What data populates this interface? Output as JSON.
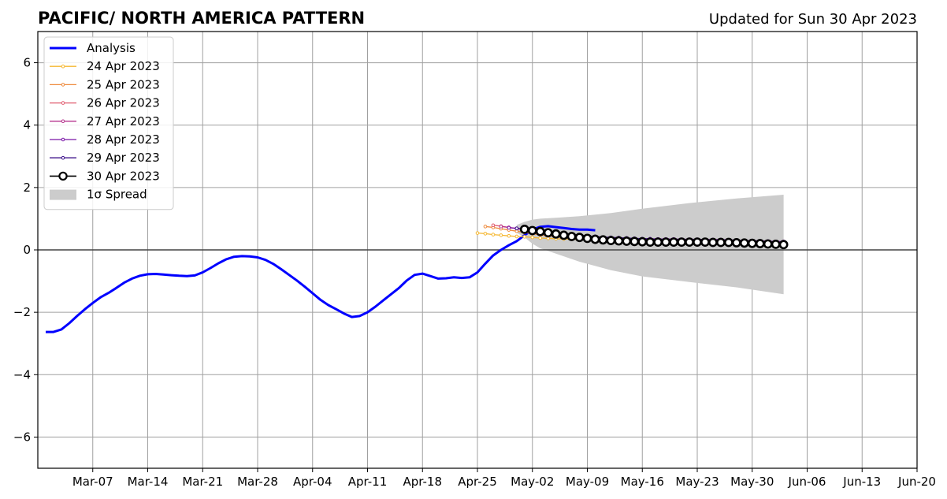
{
  "title": "PACIFIC/ NORTH AMERICA PATTERN",
  "subtitle": "Updated for Sun 30 Apr 2023",
  "chart_data": {
    "type": "line",
    "title": "PACIFIC/ NORTH AMERICA PATTERN",
    "subtitle": "Updated for Sun 30 Apr 2023",
    "xlabel": "",
    "ylabel": "",
    "x_axis": "date",
    "xlim": [
      "2023-02-28",
      "2023-06-20"
    ],
    "ylim": [
      -7,
      7
    ],
    "x_ticks": [
      "Mar-07",
      "Mar-14",
      "Mar-21",
      "Mar-28",
      "Apr-04",
      "Apr-11",
      "Apr-18",
      "Apr-25",
      "May-02",
      "May-09",
      "May-16",
      "May-23",
      "May-30",
      "Jun-06",
      "Jun-13",
      "Jun-20"
    ],
    "x_tick_dates": [
      "2023-03-07",
      "2023-03-14",
      "2023-03-21",
      "2023-03-28",
      "2023-04-04",
      "2023-04-11",
      "2023-04-18",
      "2023-04-25",
      "2023-05-02",
      "2023-05-09",
      "2023-05-16",
      "2023-05-23",
      "2023-05-30",
      "2023-06-06",
      "2023-06-13",
      "2023-06-20"
    ],
    "y_ticks": [
      -6,
      -4,
      -2,
      0,
      2,
      4,
      6
    ],
    "y_tick_labels": [
      "−6",
      "−4",
      "−2",
      "0",
      "2",
      "4",
      "6"
    ],
    "grid": true,
    "zero_line": true,
    "legend_position": "top-left",
    "series": [
      {
        "name": "Analysis",
        "kind": "line",
        "color": "#0000ff",
        "start_date": "2023-03-01",
        "values": [
          -2.63,
          -2.63,
          -2.55,
          -2.35,
          -2.12,
          -1.9,
          -1.7,
          -1.52,
          -1.38,
          -1.22,
          -1.05,
          -0.92,
          -0.83,
          -0.78,
          -0.77,
          -0.79,
          -0.81,
          -0.83,
          -0.84,
          -0.82,
          -0.72,
          -0.58,
          -0.43,
          -0.3,
          -0.22,
          -0.2,
          -0.21,
          -0.24,
          -0.32,
          -0.45,
          -0.62,
          -0.8,
          -0.98,
          -1.18,
          -1.39,
          -1.6,
          -1.77,
          -1.9,
          -2.04,
          -2.15,
          -2.12,
          -2.0,
          -1.82,
          -1.62,
          -1.42,
          -1.22,
          -0.98,
          -0.8,
          -0.76,
          -0.84,
          -0.92,
          -0.91,
          -0.88,
          -0.9,
          -0.88,
          -0.72,
          -0.44,
          -0.18,
          0.0,
          0.15,
          0.28,
          0.47,
          0.65,
          0.74,
          0.76,
          0.73,
          0.7,
          0.67,
          0.65,
          0.65,
          0.63
        ]
      },
      {
        "name": "24 Apr 2023",
        "kind": "forecast",
        "color": "#f5b731",
        "start_date": "2023-04-25",
        "values": [
          0.54,
          0.52,
          0.49,
          0.47,
          0.45,
          0.43,
          0.42,
          0.4,
          0.38,
          0.37,
          0.36,
          0.35,
          0.34,
          0.33,
          0.32
        ]
      },
      {
        "name": "25 Apr 2023",
        "kind": "forecast",
        "color": "#ee8a3c",
        "start_date": "2023-04-26",
        "values": [
          0.75,
          0.72,
          0.68,
          0.64,
          0.6,
          0.56,
          0.52,
          0.48,
          0.45,
          0.42,
          0.4,
          0.38,
          0.36,
          0.35
        ]
      },
      {
        "name": "26 Apr 2023",
        "kind": "forecast",
        "color": "#e05b6e",
        "start_date": "2023-04-27",
        "values": [
          0.79,
          0.76,
          0.72,
          0.68,
          0.64,
          0.6,
          0.56,
          0.52,
          0.49,
          0.46,
          0.43,
          0.41,
          0.39
        ]
      },
      {
        "name": "27 Apr 2023",
        "kind": "forecast",
        "color": "#b5338d",
        "start_date": "2023-04-28",
        "values": [
          0.75,
          0.72,
          0.69,
          0.65,
          0.61,
          0.57,
          0.53,
          0.5,
          0.47,
          0.44,
          0.42,
          0.4,
          0.38,
          0.36,
          0.35,
          0.34,
          0.33,
          0.32,
          0.31,
          0.3,
          0.29,
          0.28,
          0.27,
          0.26,
          0.25,
          0.24,
          0.23,
          0.22,
          0.21,
          0.2,
          0.2,
          0.2,
          0.2,
          0.2,
          0.2,
          0.2
        ]
      },
      {
        "name": "28 Apr 2023",
        "kind": "forecast",
        "color": "#7b16a8",
        "start_date": "2023-04-29",
        "values": [
          0.71,
          0.69,
          0.67,
          0.64,
          0.61,
          0.58,
          0.55,
          0.52,
          0.49,
          0.47,
          0.45,
          0.43,
          0.41,
          0.4,
          0.39,
          0.38,
          0.37,
          0.36,
          0.36,
          0.35,
          0.35,
          0.35,
          0.34,
          0.34,
          0.34,
          0.33,
          0.33,
          0.33,
          0.32,
          0.31,
          0.3,
          0.3,
          0.29,
          0.28,
          0.27,
          0.27
        ]
      },
      {
        "name": "29 Apr 2023",
        "kind": "forecast",
        "color": "#3b0f8a",
        "start_date": "2023-04-30",
        "values": [
          0.69,
          0.67,
          0.65,
          0.62,
          0.59,
          0.56,
          0.53,
          0.5,
          0.48,
          0.45,
          0.43,
          0.41,
          0.4,
          0.39,
          0.38,
          0.37,
          0.36,
          0.35,
          0.34,
          0.33,
          0.32,
          0.31,
          0.3,
          0.29,
          0.28,
          0.27,
          0.26,
          0.25,
          0.24,
          0.23,
          0.22,
          0.21,
          0.2,
          0.2,
          0.2
        ]
      },
      {
        "name": "30 Apr 2023",
        "kind": "forecast_main",
        "color": "#000000",
        "start_date": "2023-05-01",
        "values": [
          0.66,
          0.62,
          0.59,
          0.55,
          0.51,
          0.47,
          0.43,
          0.4,
          0.37,
          0.34,
          0.32,
          0.3,
          0.29,
          0.28,
          0.27,
          0.26,
          0.25,
          0.25,
          0.25,
          0.25,
          0.25,
          0.25,
          0.25,
          0.25,
          0.24,
          0.24,
          0.24,
          0.23,
          0.22,
          0.21,
          0.2,
          0.19,
          0.18,
          0.17
        ]
      }
    ],
    "spread": {
      "name": "1σ Spread",
      "color": "#cccccc",
      "dates": [
        "2023-04-30",
        "2023-05-01",
        "2023-05-02",
        "2023-05-03",
        "2023-05-05",
        "2023-05-08",
        "2023-05-12",
        "2023-05-16",
        "2023-05-22",
        "2023-05-28",
        "2023-06-03"
      ],
      "upper": [
        0.8,
        0.9,
        0.97,
        1.0,
        1.03,
        1.08,
        1.18,
        1.32,
        1.5,
        1.65,
        1.77
      ],
      "lower": [
        0.55,
        0.4,
        0.2,
        0.05,
        -0.12,
        -0.38,
        -0.65,
        -0.85,
        -1.03,
        -1.2,
        -1.42
      ]
    }
  }
}
